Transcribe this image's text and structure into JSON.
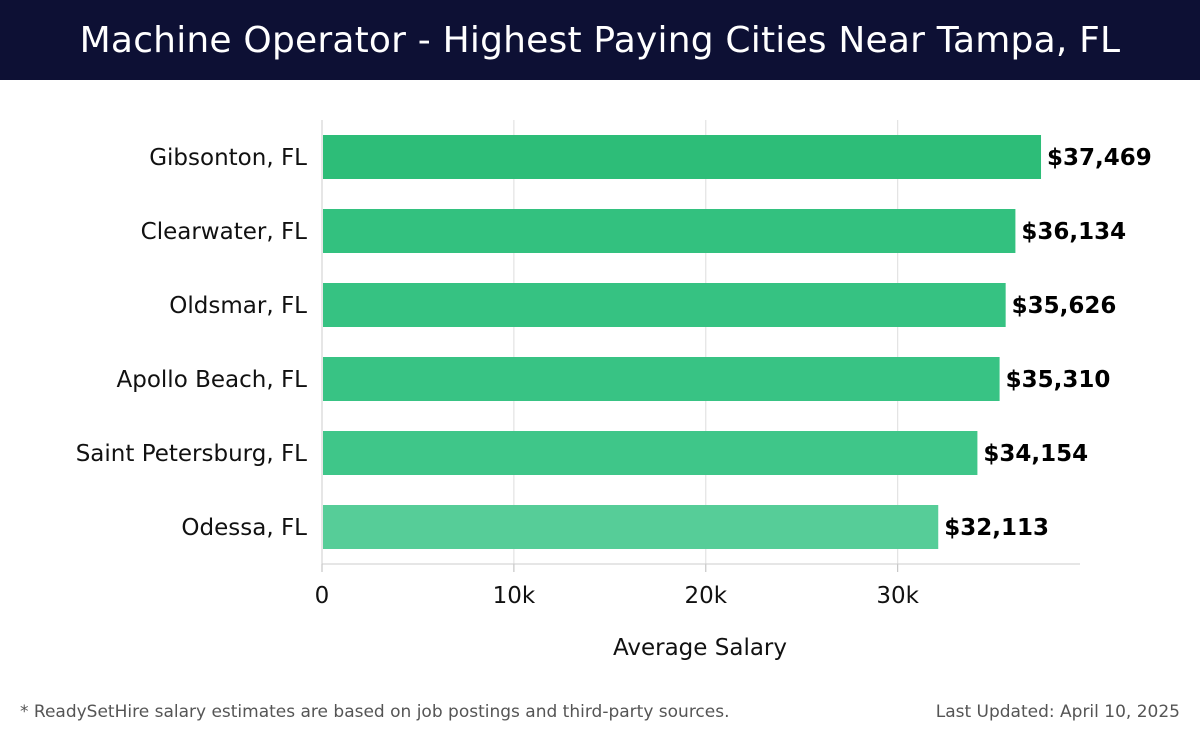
{
  "title": "Machine Operator - Highest Paying Cities Near Tampa, FL",
  "footnote": "* ReadySetHire salary estimates are based on job postings and third-party sources.",
  "last_updated": "Last Updated: April 10, 2025",
  "colors": {
    "header_bg": "#0d1034",
    "bar_colors": [
      "#2dbd78",
      "#33c17f",
      "#36c282",
      "#38c384",
      "#3fc689",
      "#56cd98"
    ],
    "grid": "#dddddd"
  },
  "chart_data": {
    "type": "bar",
    "orientation": "horizontal",
    "title": "Machine Operator - Highest Paying Cities Near Tampa, FL",
    "categories": [
      "Gibsonton, FL",
      "Clearwater, FL",
      "Oldsmar, FL",
      "Apollo Beach, FL",
      "Saint Petersburg, FL",
      "Odessa, FL"
    ],
    "values": [
      37469,
      36134,
      35626,
      35310,
      34154,
      32113
    ],
    "value_labels": [
      "$37,469",
      "$36,134",
      "$35,626",
      "$35,310",
      "$34,154",
      "$32,113"
    ],
    "xlabel": "Average Salary",
    "ylabel": "",
    "xlim": [
      0,
      39500
    ],
    "xticks": [
      0,
      10000,
      20000,
      30000
    ],
    "xtick_labels": [
      "0",
      "10k",
      "20k",
      "30k"
    ],
    "grid": true
  }
}
